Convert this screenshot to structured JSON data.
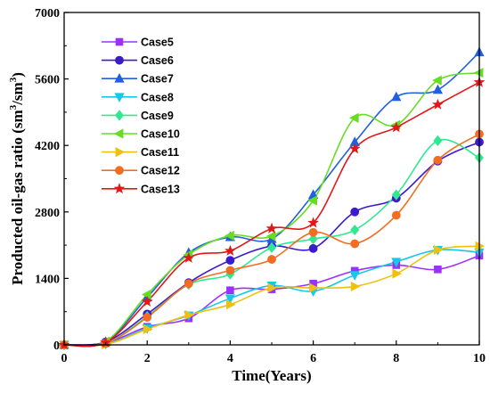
{
  "chart_data": {
    "type": "line",
    "xlabel": "Time(Years)",
    "ylabel_main": "Producted oil-gas ratio (sm",
    "ylabel_sup1": "3",
    "ylabel_mid": "/sm",
    "ylabel_sup2": "3",
    "ylabel_end": ")",
    "xlim": [
      0,
      10
    ],
    "ylim": [
      0,
      7000
    ],
    "xticks": [
      0,
      2,
      4,
      6,
      8,
      10
    ],
    "yticks": [
      0,
      1400,
      2800,
      4200,
      5600,
      7000
    ],
    "legend_position": "top-left",
    "x": [
      0,
      1,
      2,
      3,
      4,
      5,
      6,
      7,
      8,
      9,
      10
    ],
    "series": [
      {
        "name": "Case5",
        "marker": "square",
        "color": "#9b30ff",
        "values": [
          0,
          40,
          380,
          560,
          1150,
          1170,
          1290,
          1560,
          1680,
          1590,
          1880
        ]
      },
      {
        "name": "Case6",
        "marker": "circle",
        "color": "#3c19cc",
        "values": [
          0,
          60,
          650,
          1310,
          1780,
          2080,
          2030,
          2800,
          3090,
          3870,
          4270
        ]
      },
      {
        "name": "Case7",
        "marker": "triangle-up",
        "color": "#2060e0",
        "values": [
          0,
          60,
          1000,
          1940,
          2270,
          2230,
          3160,
          4270,
          5220,
          5370,
          6160
        ]
      },
      {
        "name": "Case8",
        "marker": "triangle-down",
        "color": "#18c8e8",
        "values": [
          0,
          20,
          350,
          620,
          980,
          1250,
          1130,
          1470,
          1750,
          2000,
          1950
        ]
      },
      {
        "name": "Case9",
        "marker": "diamond",
        "color": "#30e890",
        "values": [
          0,
          30,
          600,
          1270,
          1490,
          2050,
          2230,
          2420,
          3160,
          4300,
          3940
        ]
      },
      {
        "name": "Case10",
        "marker": "triangle-left",
        "color": "#66dd22",
        "values": [
          0,
          70,
          1060,
          1900,
          2300,
          2290,
          3040,
          4780,
          4630,
          5570,
          5730
        ]
      },
      {
        "name": "Case11",
        "marker": "triangle-right",
        "color": "#f0c010",
        "values": [
          0,
          10,
          330,
          630,
          850,
          1200,
          1200,
          1230,
          1500,
          2000,
          2080
        ]
      },
      {
        "name": "Case12",
        "marker": "circle",
        "color": "#f26d21",
        "values": [
          0,
          30,
          580,
          1290,
          1570,
          1800,
          2370,
          2130,
          2730,
          3890,
          4440
        ]
      },
      {
        "name": "Case13",
        "marker": "star",
        "color": "#e01818",
        "values": [
          0,
          50,
          910,
          1830,
          1980,
          2450,
          2570,
          4130,
          4580,
          5060,
          5530
        ]
      }
    ]
  }
}
